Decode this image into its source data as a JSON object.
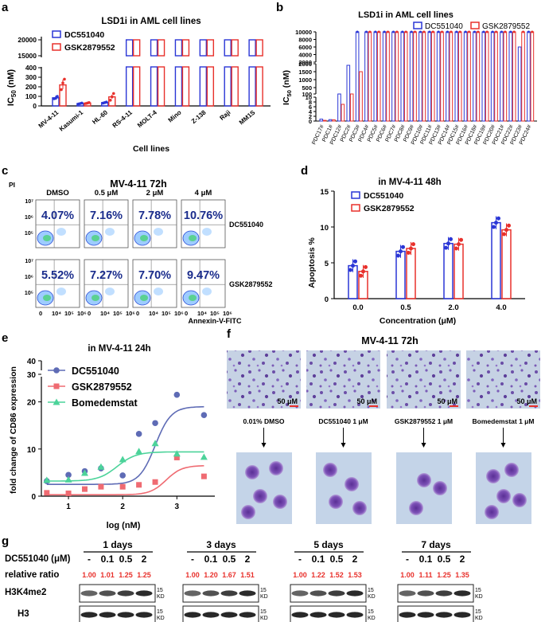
{
  "colors": {
    "blue": "#2a36d6",
    "red": "#e8302b",
    "green": "#4cd39a",
    "slate": "#5e6bb5",
    "pink": "#ef6b72",
    "relred": "#e8302b",
    "dot": "#1c2bdb"
  },
  "panel_a": {
    "letter": "a",
    "title": "LSD1i in AML cell lines",
    "ylabel": "IC50 (nM)",
    "ylabel_sub": "50",
    "xlabel": "Cell lines",
    "legend": [
      "DC551040",
      "GSK2879552"
    ],
    "yticks_top": [
      "20000",
      "15000"
    ],
    "yticks_bottom": [
      "400",
      "300",
      "200",
      "100",
      "0"
    ]
  },
  "panel_b": {
    "letter": "b",
    "title": "LSD1i in AML cell lines",
    "ylabel": "IC50 (nM)",
    "legend": [
      "DC551040",
      "GSK2879552"
    ],
    "yticks_s1": [
      "10000",
      "8000",
      "6000",
      "4000",
      "2000"
    ],
    "yticks_s2": [
      "2000",
      "1500",
      "1000",
      "500",
      "100"
    ],
    "yticks_s3": [
      "10",
      "8",
      "6",
      "4",
      "2",
      "0"
    ]
  },
  "panel_c": {
    "letter": "c",
    "title": "MV-4-11  72h",
    "axis_y": "PI",
    "axis_x": "Annexin-V-FITC",
    "cols": [
      "DMSO",
      "0.5 μM",
      "2 μM",
      "4 μM"
    ],
    "rows": [
      {
        "label": "DC551040",
        "values": [
          "4.07%",
          "7.16%",
          "7.78%",
          "10.76%"
        ]
      },
      {
        "label": "GSK2879552",
        "values": [
          "5.52%",
          "7.27%",
          "7.70%",
          "9.47%"
        ]
      }
    ],
    "yticks": [
      "10⁷",
      "10⁶",
      "10⁵"
    ],
    "xticks": [
      "0",
      "10⁴",
      "10⁵",
      "10⁶"
    ]
  },
  "panel_d": {
    "letter": "d",
    "title": "in MV-4-11 48h",
    "yticks": [
      "15",
      "10",
      "5",
      "0"
    ]
  },
  "panel_e": {
    "letter": "e",
    "title": "in MV-4-11 24h",
    "yticks": [
      "40",
      "30",
      "20",
      "10",
      "0"
    ],
    "xticks": [
      "1",
      "2",
      "3"
    ]
  },
  "panel_f": {
    "letter": "f",
    "title": "MV-4-11  72h",
    "scale": "50 μM",
    "labels": [
      "0.01% DMSO",
      "DC551040 1 μM",
      "GSK2879552 1 μM",
      "Bomedemstat 1 μM"
    ]
  },
  "panel_g": {
    "letter": "g",
    "row_label": "DC551040  (μM)",
    "ratio_label": "relative ratio",
    "proteins": [
      "H3K4me2",
      "H3"
    ],
    "kd_value": "15",
    "kd_unit": "KD",
    "groups": [
      {
        "title": "1 days",
        "doses": [
          "-",
          "0.1",
          "0.5",
          "2"
        ],
        "ratios": [
          "1.00",
          "1.01",
          "1.25",
          "1.25"
        ]
      },
      {
        "title": "3 days",
        "doses": [
          "-",
          "0.1",
          "0.5",
          "2"
        ],
        "ratios": [
          "1.00",
          "1.20",
          "1.67",
          "1.51"
        ]
      },
      {
        "title": "5 days",
        "doses": [
          "-",
          "0.1",
          "0.5",
          "2"
        ],
        "ratios": [
          "1.00",
          "1.22",
          "1.52",
          "1.53"
        ]
      },
      {
        "title": "7 days",
        "doses": [
          "-",
          "0.1",
          "0.5",
          "2"
        ],
        "ratios": [
          "1.00",
          "1.11",
          "1.25",
          "1.35"
        ]
      }
    ]
  },
  "chart_data": [
    {
      "panel": "a",
      "type": "bar",
      "title": "LSD1i in AML cell lines",
      "xlabel": "Cell lines",
      "ylabel": "IC50 (nM)",
      "categories": [
        "MV-4-11",
        "Kasumi-1",
        "HL-60",
        "RS-4-11",
        "MOLT-4",
        "Mino",
        "Z-138",
        "Raji",
        "MM1S"
      ],
      "series": [
        {
          "name": "DC551040",
          "values": [
            85,
            25,
            35,
            20000,
            20000,
            20000,
            20000,
            20000,
            20000
          ],
          "points": [
            [
              75,
              80,
              100
            ],
            [
              20,
              25,
              30
            ],
            [
              30,
              35,
              40
            ],
            [],
            [],
            [],
            [],
            [],
            []
          ]
        },
        {
          "name": "GSK2879552",
          "values": [
            220,
            30,
            95,
            20000,
            20000,
            20000,
            20000,
            20000,
            20000
          ],
          "points": [
            [
              170,
              240,
              280
            ],
            [
              25,
              30,
              35
            ],
            [
              60,
              95,
              130
            ],
            [],
            [],
            [],
            [],
            [],
            []
          ]
        }
      ],
      "ylim": [
        0,
        20000
      ],
      "axis_break": [
        400,
        15000
      ],
      "legend_position": "top-left"
    },
    {
      "panel": "b",
      "type": "bar",
      "title": "LSD1i in AML cell lines",
      "ylabel": "IC50 (nM)",
      "categories": [
        "PDC17#",
        "PDC1#",
        "PDC12#",
        "PDC2#",
        "PDC3#",
        "PDC4#",
        "PDC5#",
        "PDC6#",
        "PDC7#",
        "PDC8#",
        "PDC9#",
        "PDC10#",
        "PDC11#",
        "PDC13#",
        "PDC14#",
        "PDC15#",
        "PDC16#",
        "PDC18#",
        "PDC19#",
        "PDC20#",
        "PDC21#",
        "PDC22#",
        "PDC23#",
        "PDC24#"
      ],
      "series": [
        {
          "name": "DC551040",
          "values": [
            0.8,
            0.6,
            100,
            1900,
            10000,
            10000,
            10000,
            10000,
            10000,
            10000,
            10000,
            10000,
            10000,
            10000,
            10000,
            10000,
            10000,
            10000,
            10000,
            10000,
            10000,
            10000,
            6000,
            10000
          ]
        },
        {
          "name": "GSK2879552",
          "values": [
            0.3,
            0.5,
            7,
            100,
            1500,
            10000,
            10000,
            10000,
            10000,
            10000,
            10000,
            10000,
            10000,
            10000,
            10000,
            10000,
            10000,
            10000,
            10000,
            10000,
            10000,
            10000,
            10000,
            10000
          ]
        }
      ],
      "ylim": [
        0,
        10000
      ],
      "axis_breaks": [
        [
          10,
          100
        ],
        [
          2000,
          2000
        ]
      ],
      "legend_position": "top-right"
    },
    {
      "panel": "d",
      "type": "bar",
      "title": "in MV-4-11 48h",
      "xlabel": "Concentration (μM)",
      "ylabel": "Apoptosis %",
      "categories": [
        "0.0",
        "0.5",
        "2.0",
        "4.0"
      ],
      "series": [
        {
          "name": "DC551040",
          "values": [
            4.6,
            6.6,
            7.7,
            10.6
          ]
        },
        {
          "name": "GSK2879552",
          "values": [
            3.8,
            7.0,
            7.6,
            9.6
          ]
        }
      ],
      "ylim": [
        0,
        15
      ],
      "legend_position": "top-left"
    },
    {
      "panel": "e",
      "type": "scatter",
      "title": "in MV-4-11 24h",
      "xlabel": "log (nM)",
      "ylabel": "fold change of CD86 expression",
      "series": [
        {
          "name": "DC551040",
          "x": [
            0.6,
            1.0,
            1.3,
            1.6,
            2.0,
            2.3,
            2.6,
            3.0,
            3.5
          ],
          "y": [
            3.2,
            4.5,
            5.3,
            5.9,
            4.4,
            13.2,
            15.5,
            21.5,
            17.2
          ]
        },
        {
          "name": "GSK2879552",
          "x": [
            0.6,
            1.0,
            1.3,
            1.6,
            2.0,
            2.3,
            2.6,
            3.0,
            3.5
          ],
          "y": [
            0.7,
            0.6,
            1.5,
            2.0,
            2.0,
            2.4,
            3.0,
            8.2,
            4.2
          ]
        },
        {
          "name": "Bomedemstat",
          "x": [
            0.6,
            1.0,
            1.3,
            1.6,
            2.0,
            2.3,
            2.6,
            3.0,
            3.5
          ],
          "y": [
            3.4,
            3.5,
            4.9,
            6.2,
            7.8,
            9.5,
            11.2,
            9.0,
            8.3
          ]
        }
      ],
      "xlim": [
        0.5,
        3.7
      ],
      "ylim": [
        0,
        40
      ],
      "axis_break": [
        25,
        35
      ],
      "legend_position": "top-left"
    },
    {
      "panel": "c",
      "type": "table",
      "title": "MV-4-11  72h",
      "columns": [
        "DMSO",
        "0.5 μM",
        "2 μM",
        "4 μM"
      ],
      "rows": [
        {
          "name": "DC551040",
          "values": [
            "4.07%",
            "7.16%",
            "7.78%",
            "10.76%"
          ]
        },
        {
          "name": "GSK2879552",
          "values": [
            "5.52%",
            "7.27%",
            "7.70%",
            "9.47%"
          ]
        }
      ]
    }
  ]
}
